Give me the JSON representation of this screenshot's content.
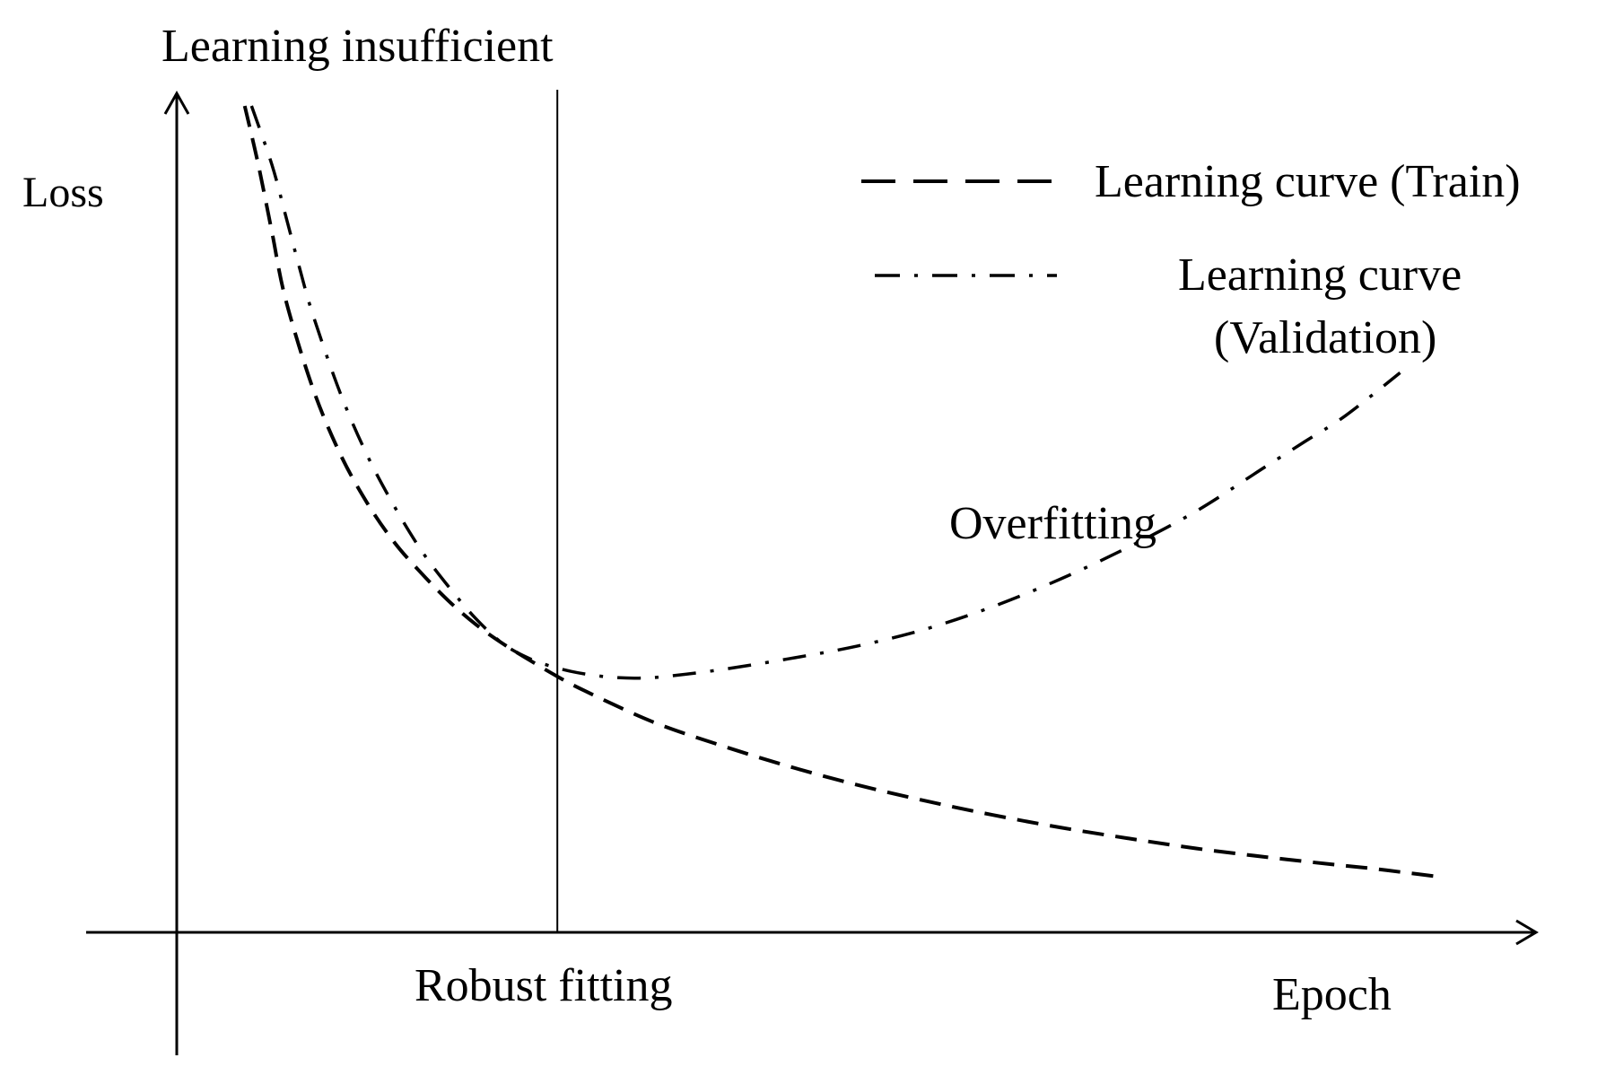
{
  "chart_data": {
    "type": "line",
    "title": "",
    "xlabel": "Epoch",
    "ylabel": "Loss",
    "grid": false,
    "x_range": [
      0,
      100
    ],
    "y_range": [
      0,
      100
    ],
    "legend_placement": "top-right",
    "series": [
      {
        "name": "Learning curve (Train)",
        "style": "dashed",
        "color": "#000000",
        "points": [
          [
            5,
            98.5
          ],
          [
            6,
            91.5
          ],
          [
            7,
            83.5
          ],
          [
            8,
            75.5
          ],
          [
            10,
            64.9
          ],
          [
            12,
            57.1
          ],
          [
            14,
            51.2
          ],
          [
            16,
            46.5
          ],
          [
            18,
            42.8
          ],
          [
            20,
            39.5
          ],
          [
            22,
            36.7
          ],
          [
            24,
            34.4
          ],
          [
            26,
            32.4
          ],
          [
            28,
            30.5
          ],
          [
            30,
            28.8
          ],
          [
            35,
            25.1
          ],
          [
            40,
            22.3
          ],
          [
            45,
            19.8
          ],
          [
            50,
            17.6
          ],
          [
            55,
            15.7
          ],
          [
            60,
            14.0
          ],
          [
            65,
            12.5
          ],
          [
            70,
            11.2
          ],
          [
            75,
            10.0
          ],
          [
            80,
            9.0
          ],
          [
            85,
            8.1
          ],
          [
            88,
            7.6
          ],
          [
            90,
            7.2
          ],
          [
            93,
            6.6
          ]
        ]
      },
      {
        "name": "Learning curve (Validation)",
        "style": "dash-dot",
        "color": "#000000",
        "points": [
          [
            5.5,
            98.5
          ],
          [
            7,
            91.5
          ],
          [
            8,
            85.5
          ],
          [
            9,
            79.4
          ],
          [
            10,
            73.7
          ],
          [
            12,
            64.4
          ],
          [
            14,
            56.9
          ],
          [
            16,
            50.8
          ],
          [
            18,
            45.5
          ],
          [
            20,
            41.2
          ],
          [
            22,
            37.4
          ],
          [
            24,
            34.4
          ],
          [
            26,
            32.6
          ],
          [
            28,
            31.5
          ],
          [
            30,
            30.8
          ],
          [
            32,
            30.4
          ],
          [
            34,
            30.3
          ],
          [
            36,
            30.5
          ],
          [
            40,
            31.3
          ],
          [
            45,
            32.6
          ],
          [
            50,
            34.1
          ],
          [
            55,
            36.1
          ],
          [
            60,
            38.8
          ],
          [
            65,
            42.1
          ],
          [
            70,
            45.9
          ],
          [
            75,
            50.2
          ],
          [
            80,
            55.4
          ],
          [
            83,
            58.5
          ],
          [
            86,
            61.6
          ],
          [
            90,
            66.7
          ]
        ]
      }
    ],
    "annotations": {
      "top": "Learning insufficient",
      "middle_right": "Overfitting",
      "bottom_center": "Robust fitting"
    },
    "marker": {
      "x": 28
    },
    "legend": [
      {
        "label": "Learning curve (Train)",
        "style": "dashed"
      },
      {
        "label": "Learning curve (Validation)",
        "style": "dash-dot",
        "lines": [
          "Learning curve",
          "(Validation)"
        ]
      }
    ]
  }
}
